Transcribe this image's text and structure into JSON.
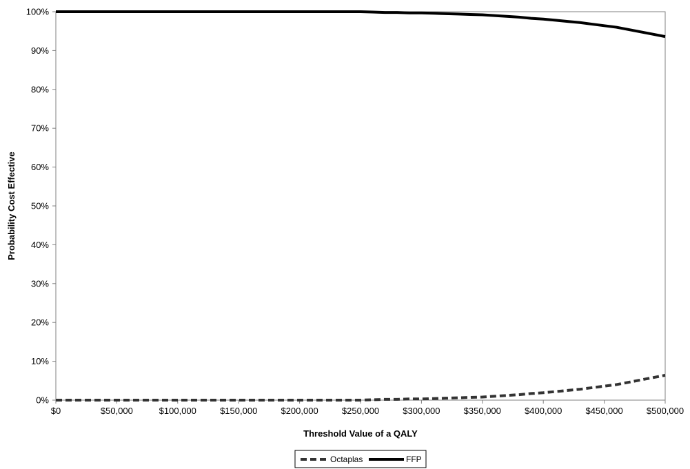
{
  "chart_data": {
    "type": "line",
    "title": "",
    "xlabel": "Threshold Value of a QALY",
    "ylabel": "Probability Cost Effective",
    "xlim": [
      0,
      500000
    ],
    "ylim": [
      0,
      1
    ],
    "x_ticks": [
      0,
      50000,
      100000,
      150000,
      200000,
      250000,
      300000,
      350000,
      400000,
      450000,
      500000
    ],
    "x_tick_labels": [
      "$0",
      "$50,000",
      "$100,000",
      "$150,000",
      "$200,000",
      "$250,000",
      "$300,000",
      "$350,000",
      "$400,000",
      "$450,000",
      "$500,000"
    ],
    "y_ticks": [
      0,
      0.1,
      0.2,
      0.3,
      0.4,
      0.5,
      0.6,
      0.7,
      0.8,
      0.9,
      1.0
    ],
    "y_tick_labels": [
      "0%",
      "10%",
      "20%",
      "30%",
      "40%",
      "50%",
      "60%",
      "70%",
      "80%",
      "90%",
      "100%"
    ],
    "grid": false,
    "legend_position": "bottom",
    "x": [
      0,
      50000,
      100000,
      150000,
      200000,
      250000,
      260000,
      270000,
      280000,
      290000,
      300000,
      310000,
      320000,
      330000,
      340000,
      350000,
      360000,
      370000,
      380000,
      390000,
      400000,
      410000,
      420000,
      430000,
      440000,
      450000,
      460000,
      470000,
      480000,
      490000,
      500000
    ],
    "series": [
      {
        "name": "Octaplas",
        "style": "dashed",
        "color": "#333333",
        "values": [
          0,
          0,
          0,
          0,
          0,
          0,
          0.001,
          0.002,
          0.002,
          0.003,
          0.003,
          0.004,
          0.005,
          0.006,
          0.007,
          0.008,
          0.01,
          0.012,
          0.014,
          0.017,
          0.019,
          0.022,
          0.025,
          0.028,
          0.032,
          0.036,
          0.04,
          0.046,
          0.052,
          0.058,
          0.064
        ]
      },
      {
        "name": "FFP",
        "style": "solid",
        "color": "#000000",
        "values": [
          1,
          1,
          1,
          1,
          1,
          1,
          0.999,
          0.998,
          0.998,
          0.997,
          0.997,
          0.996,
          0.995,
          0.994,
          0.993,
          0.992,
          0.99,
          0.988,
          0.986,
          0.983,
          0.981,
          0.978,
          0.975,
          0.972,
          0.968,
          0.964,
          0.96,
          0.954,
          0.948,
          0.942,
          0.936
        ]
      }
    ]
  },
  "colors": {
    "axis": "#808080",
    "background": "#ffffff"
  }
}
